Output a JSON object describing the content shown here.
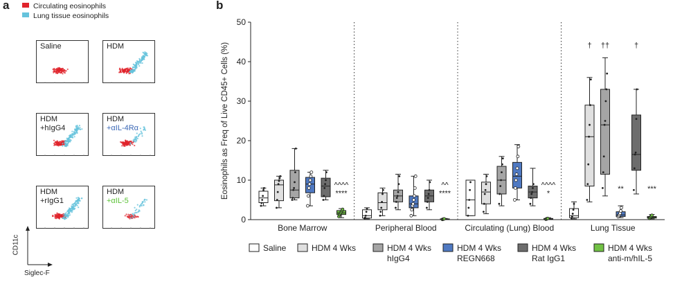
{
  "panel_a": {
    "letter": "a",
    "legend": [
      {
        "label": "Circulating eosinophils",
        "color": "#e0242c"
      },
      {
        "label": "Lung tissue eosinophils",
        "color": "#66c3dc"
      }
    ],
    "plots": [
      {
        "line1": "Saline",
        "line2": "",
        "line2_color": "#222222"
      },
      {
        "line1": "HDM",
        "line2": "",
        "line2_color": "#222222"
      },
      {
        "line1": "HDM",
        "line2": "+hIgG4",
        "line2_color": "#222222"
      },
      {
        "line1": "HDM",
        "line2": "+αIL-4Rα",
        "line2_color": "#3a67b5"
      },
      {
        "line1": "HDM",
        "line2": "+rIgG1",
        "line2_color": "#222222"
      },
      {
        "line1": "HDM",
        "line2": "+αIL-5",
        "line2_color": "#5bc236"
      }
    ],
    "x_axis": "Siglec-F",
    "y_axis": "CD11c"
  },
  "panel_b": {
    "letter": "b",
    "chart_data": {
      "type": "box",
      "ylabel": "Eosinophils as Freq of Live CD45+ Cells (%)",
      "ylim": [
        0,
        50
      ],
      "yticks": [
        0,
        10,
        20,
        30,
        40,
        50
      ],
      "groups": [
        "Bone Marrow",
        "Peripheral Blood",
        "Circulating (Lung) Blood",
        "Lung Tissue"
      ],
      "series": [
        {
          "name": "Saline",
          "color": "#ffffff"
        },
        {
          "name": "HDM 4 Wks",
          "color": "#e0e0e0"
        },
        {
          "name": "HDM 4 Wks hIgG4",
          "color": "#a5a5a5"
        },
        {
          "name": "HDM 4 Wks REGN668",
          "color": "#4f79c2"
        },
        {
          "name": "HDM 4 Wks Rat IgG1",
          "color": "#6d6d6d"
        },
        {
          "name": "HDM 4 Wks anti-m/hIL-5",
          "color": "#71c144"
        }
      ],
      "boxes": [
        [
          {
            "min": 3.5,
            "q1": 4.3,
            "median": 5.5,
            "q3": 7.2,
            "max": 8.0,
            "points": [
              3.5,
              4.2,
              5.0,
              6.0,
              7.5,
              8.0
            ]
          },
          {
            "min": 3.0,
            "q1": 4.8,
            "median": 8.8,
            "q3": 10.0,
            "max": 11.0,
            "points": [
              3.0,
              5.0,
              7.0,
              9.0,
              9.8,
              10.5,
              11.0
            ]
          },
          {
            "min": 5.0,
            "q1": 5.5,
            "median": 7.5,
            "q3": 12.5,
            "max": 18.0,
            "points": [
              5.0,
              5.5,
              7.5,
              8.0,
              9.5,
              12.0,
              18.0
            ]
          },
          {
            "min": 3.5,
            "q1": 6.8,
            "median": 9.0,
            "q3": 10.7,
            "max": 12.0,
            "points": [
              3.5,
              6.0,
              8.0,
              9.0,
              10.0,
              11.0,
              12.0
            ]
          },
          {
            "min": 5.0,
            "q1": 5.8,
            "median": 8.5,
            "q3": 10.5,
            "max": 12.5,
            "points": [
              5.0,
              6.0,
              8.0,
              9.0,
              10.0,
              12.0
            ]
          },
          {
            "min": 0.5,
            "q1": 1.3,
            "median": 1.7,
            "q3": 2.3,
            "max": 2.8,
            "points": [
              0.8,
              1.2,
              1.5,
              1.7,
              2.0,
              2.3,
              2.6
            ]
          }
        ],
        [
          {
            "min": 0.2,
            "q1": 0.4,
            "median": 1.0,
            "q3": 2.5,
            "max": 3.0,
            "points": [
              0.3,
              0.5,
              1.0,
              2.0,
              2.8
            ]
          },
          {
            "min": 1.0,
            "q1": 2.5,
            "median": 4.3,
            "q3": 6.8,
            "max": 8.0,
            "points": [
              1.0,
              2.0,
              3.0,
              4.5,
              6.5,
              7.5
            ]
          },
          {
            "min": 2.5,
            "q1": 4.5,
            "median": 6.0,
            "q3": 7.5,
            "max": 11.5,
            "points": [
              3.0,
              4.5,
              5.5,
              6.0,
              7.0,
              9.0,
              11.0
            ]
          },
          {
            "min": 1.0,
            "q1": 3.0,
            "median": 4.0,
            "q3": 6.0,
            "max": 11.0,
            "points": [
              1.0,
              2.5,
              3.5,
              4.0,
              5.0,
              6.0,
              8.0,
              11.0
            ]
          },
          {
            "min": 2.5,
            "q1": 4.5,
            "median": 6.0,
            "q3": 7.5,
            "max": 10.0,
            "points": [
              3.0,
              4.5,
              5.5,
              6.5,
              7.5,
              9.5
            ]
          },
          {
            "min": 0.0,
            "q1": 0.05,
            "median": 0.1,
            "q3": 0.2,
            "max": 0.3,
            "points": [
              0.05,
              0.1,
              0.15,
              0.2
            ]
          }
        ],
        [
          {
            "min": 1.0,
            "q1": 1.0,
            "median": 5.0,
            "q3": 10.0,
            "max": 10.0,
            "points": [
              1.0,
              3.0,
              5.0,
              7.5,
              9.5
            ]
          },
          {
            "min": 1.5,
            "q1": 4.0,
            "median": 7.0,
            "q3": 9.5,
            "max": 11.5,
            "points": [
              2.0,
              4.0,
              6.5,
              7.5,
              9.0,
              11.0
            ]
          },
          {
            "min": 3.5,
            "q1": 6.5,
            "median": 10.0,
            "q3": 13.5,
            "max": 16.0,
            "points": [
              4.0,
              6.5,
              8.5,
              10.0,
              12.0,
              14.0,
              15.5
            ]
          },
          {
            "min": 5.0,
            "q1": 8.0,
            "median": 11.0,
            "q3": 14.5,
            "max": 19.0,
            "points": [
              5.0,
              8.0,
              10.0,
              11.5,
              13.0,
              16.0,
              18.5
            ]
          },
          {
            "min": 3.5,
            "q1": 5.5,
            "median": 7.0,
            "q3": 8.5,
            "max": 13.0,
            "points": [
              4.0,
              5.5,
              6.5,
              7.0,
              8.0,
              9.0
            ]
          },
          {
            "min": 0.0,
            "q1": 0.1,
            "median": 0.2,
            "q3": 0.3,
            "max": 0.5,
            "points": [
              0.1,
              0.15,
              0.25,
              0.3
            ]
          }
        ],
        [
          {
            "min": 0.2,
            "q1": 0.5,
            "median": 1.0,
            "q3": 2.8,
            "max": 4.5,
            "points": [
              0.3,
              0.8,
              1.5,
              2.5,
              4.0
            ]
          },
          {
            "min": 4.5,
            "q1": 8.5,
            "median": 21.0,
            "q3": 29.0,
            "max": 36.0,
            "points": [
              5.0,
              9.0,
              14.0,
              21.0,
              24.0,
              29.0,
              35.5
            ]
          },
          {
            "min": 6.0,
            "q1": 11.5,
            "median": 24.0,
            "q3": 33.0,
            "max": 41.0,
            "points": [
              8.0,
              12.0,
              16.0,
              24.0,
              25.0,
              30.0,
              33.0,
              37.0
            ]
          },
          {
            "min": 0.5,
            "q1": 0.8,
            "median": 1.2,
            "q3": 2.0,
            "max": 3.5,
            "points": [
              0.7,
              1.0,
              1.3,
              1.6,
              2.2,
              3.0
            ]
          },
          {
            "min": 6.5,
            "q1": 12.5,
            "median": 16.5,
            "q3": 26.5,
            "max": 33.0,
            "points": [
              7.5,
              13.0,
              16.5,
              17.0,
              25.5,
              33.0
            ]
          },
          {
            "min": 0.2,
            "q1": 0.4,
            "median": 0.6,
            "q3": 0.8,
            "max": 1.3,
            "points": [
              0.3,
              0.5,
              0.7,
              0.9,
              1.1
            ]
          }
        ]
      ],
      "annotations": [
        {
          "group": 0,
          "series": 5,
          "y_value": 8.2,
          "lines": [
            "^^^^",
            "****"
          ]
        },
        {
          "group": 1,
          "series": 5,
          "y_value": 8.2,
          "lines": [
            "^^",
            "****"
          ]
        },
        {
          "group": 2,
          "series": 5,
          "y_value": 8.2,
          "lines": [
            "^^^^",
            "*"
          ]
        },
        {
          "group": 3,
          "series": 1,
          "y_value": 43.5,
          "lines": [
            "†"
          ]
        },
        {
          "group": 3,
          "series": 2,
          "y_value": 43.5,
          "lines": [
            "††"
          ]
        },
        {
          "group": 3,
          "series": 4,
          "y_value": 43.5,
          "lines": [
            "†"
          ]
        },
        {
          "group": 3,
          "series": 3,
          "y_value": 7.2,
          "lines": [
            "**"
          ]
        },
        {
          "group": 3,
          "series": 5,
          "y_value": 7.2,
          "lines": [
            "***"
          ]
        }
      ],
      "legend": [
        {
          "line1": "Saline",
          "line2": ""
        },
        {
          "line1": "HDM 4 Wks",
          "line2": ""
        },
        {
          "line1": "HDM 4 Wks",
          "line2": "hIgG4"
        },
        {
          "line1": "HDM 4 Wks",
          "line2": "REGN668"
        },
        {
          "line1": "HDM 4 Wks",
          "line2": "Rat IgG1"
        },
        {
          "line1": "HDM 4 Wks",
          "line2": "anti-m/hIL-5"
        }
      ]
    }
  }
}
